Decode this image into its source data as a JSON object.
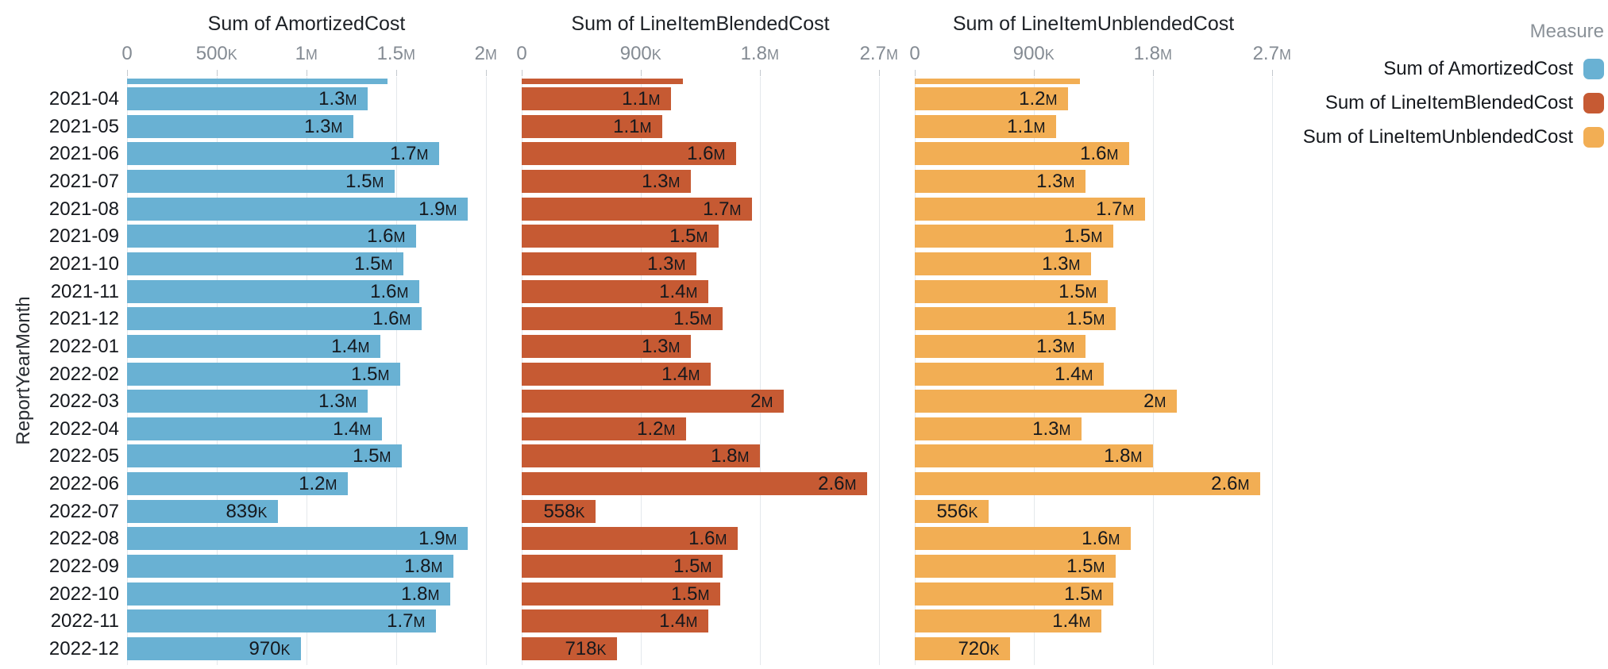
{
  "y_axis_title": "ReportYearMonth",
  "colors": {
    "background": "#ffffff",
    "gridline": "#e4e8ec",
    "tick_mark": "#c4c9ce",
    "axis_text": "#848b93",
    "label_text": "#15181d",
    "legend_title_text": "#8a9198"
  },
  "chart_data": {
    "type": "bar",
    "orientation": "horizontal",
    "title": "",
    "ylabel": "ReportYearMonth",
    "xlabel": "",
    "grid": true,
    "legend": {
      "title": "Measure",
      "position": "top-right"
    },
    "categories": [
      "2021-04",
      "2021-05",
      "2021-06",
      "2021-07",
      "2021-08",
      "2021-09",
      "2021-10",
      "2021-11",
      "2021-12",
      "2022-01",
      "2022-02",
      "2022-03",
      "2022-04",
      "2022-05",
      "2022-06",
      "2022-07",
      "2022-08",
      "2022-09",
      "2022-10",
      "2022-11",
      "2022-12"
    ],
    "panels": [
      {
        "title": "Sum of AmortizedCost",
        "color": "#69b1d3",
        "xlim_m": [
          0,
          2.18
        ],
        "axis_ticks": [
          {
            "value_m": 0,
            "label": "0"
          },
          {
            "value_m": 0.5,
            "label": "500k"
          },
          {
            "value_m": 1,
            "label": "1m"
          },
          {
            "value_m": 1.5,
            "label": "1.5m"
          },
          {
            "value_m": 2,
            "label": "2m"
          }
        ],
        "bar_labels": [
          "1.3m",
          "1.3m",
          "1.7m",
          "1.5m",
          "1.9m",
          "1.6m",
          "1.5m",
          "1.6m",
          "1.6m",
          "1.4m",
          "1.5m",
          "1.3m",
          "1.4m",
          "1.5m",
          "1.2m",
          "839k",
          "1.9m",
          "1.8m",
          "1.8m",
          "1.7m",
          "970k"
        ],
        "values_m": [
          1.34,
          1.26,
          1.74,
          1.49,
          1.9,
          1.61,
          1.54,
          1.63,
          1.64,
          1.41,
          1.52,
          1.34,
          1.42,
          1.53,
          1.23,
          0.839,
          1.9,
          1.82,
          1.8,
          1.72,
          0.97
        ],
        "clipped_top_bar_m": 1.45
      },
      {
        "title": "Sum of LineItemBlendedCost",
        "color": "#c65a33",
        "xlim_m": [
          0,
          2.94
        ],
        "axis_ticks": [
          {
            "value_m": 0,
            "label": "0"
          },
          {
            "value_m": 0.9,
            "label": "900k"
          },
          {
            "value_m": 1.8,
            "label": "1.8m"
          },
          {
            "value_m": 2.7,
            "label": "2.7m"
          }
        ],
        "bar_labels": [
          "1.1m",
          "1.1m",
          "1.6m",
          "1.3m",
          "1.7m",
          "1.5m",
          "1.3m",
          "1.4m",
          "1.5m",
          "1.3m",
          "1.4m",
          "2m",
          "1.2m",
          "1.8m",
          "2.6m",
          "558k",
          "1.6m",
          "1.5m",
          "1.5m",
          "1.4m",
          "718k"
        ],
        "values_m": [
          1.13,
          1.06,
          1.62,
          1.28,
          1.74,
          1.49,
          1.32,
          1.41,
          1.52,
          1.28,
          1.43,
          1.98,
          1.24,
          1.8,
          2.61,
          0.558,
          1.63,
          1.52,
          1.5,
          1.41,
          0.718
        ],
        "clipped_top_bar_m": 1.22
      },
      {
        "title": "Sum of LineItemUnblendedCost",
        "color": "#f2ae54",
        "xlim_m": [
          0,
          2.94
        ],
        "axis_ticks": [
          {
            "value_m": 0,
            "label": "0"
          },
          {
            "value_m": 0.9,
            "label": "900k"
          },
          {
            "value_m": 1.8,
            "label": "1.8m"
          },
          {
            "value_m": 2.7,
            "label": "2.7m"
          }
        ],
        "bar_labels": [
          "1.2m",
          "1.1m",
          "1.6m",
          "1.3m",
          "1.7m",
          "1.5m",
          "1.3m",
          "1.5m",
          "1.5m",
          "1.3m",
          "1.4m",
          "2m",
          "1.3m",
          "1.8m",
          "2.6m",
          "556k",
          "1.6m",
          "1.5m",
          "1.5m",
          "1.4m",
          "720k"
        ],
        "values_m": [
          1.16,
          1.07,
          1.62,
          1.29,
          1.74,
          1.5,
          1.33,
          1.46,
          1.52,
          1.29,
          1.43,
          1.98,
          1.26,
          1.8,
          2.61,
          0.556,
          1.63,
          1.52,
          1.5,
          1.41,
          0.72
        ],
        "clipped_top_bar_m": 1.25
      }
    ],
    "legend_items": [
      {
        "label": "Sum of AmortizedCost",
        "color": "#69b1d3"
      },
      {
        "label": "Sum of LineItemBlendedCost",
        "color": "#c65a33"
      },
      {
        "label": "Sum of LineItemUnblendedCost",
        "color": "#f2ae54"
      }
    ]
  }
}
